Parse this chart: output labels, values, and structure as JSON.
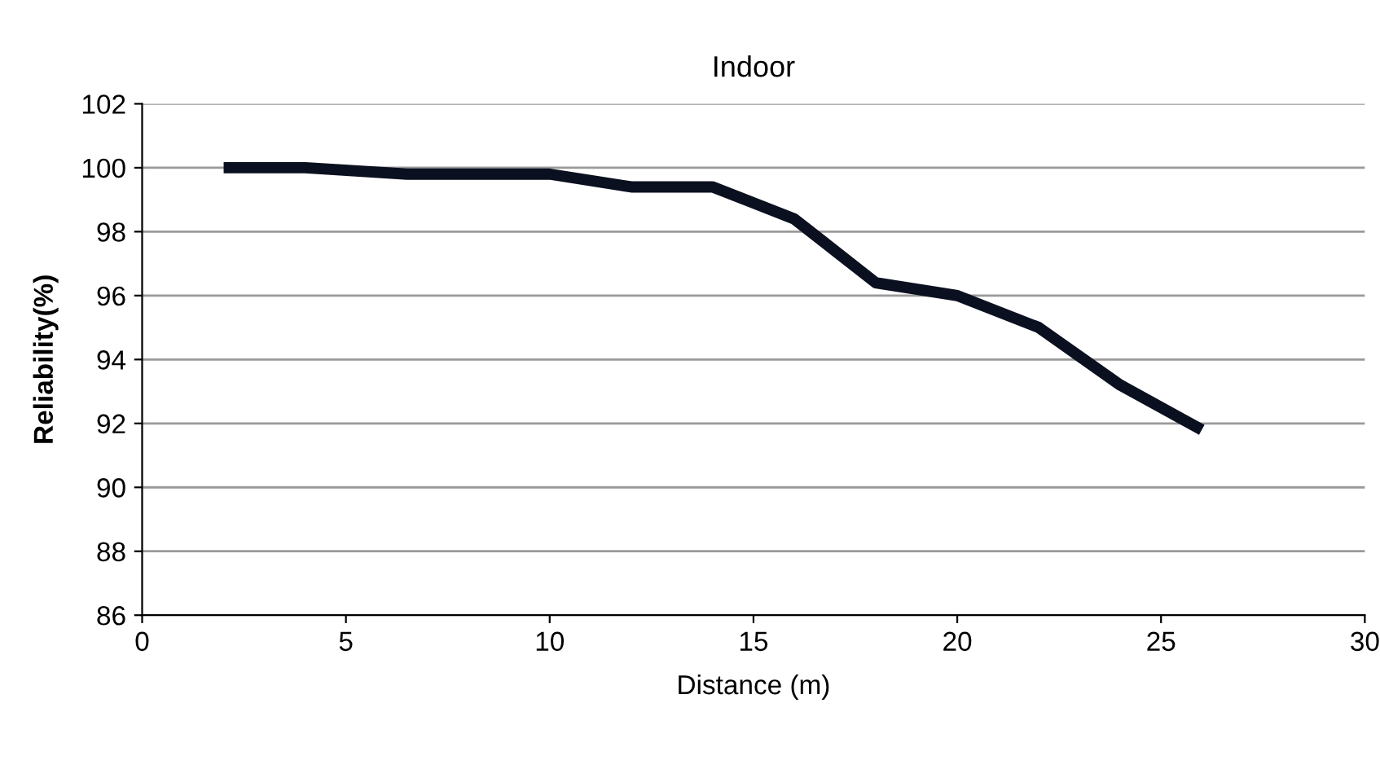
{
  "chart_data": {
    "type": "line",
    "title": "Indoor",
    "xlabel": "Distance (m)",
    "ylabel": "Reliability(%)",
    "series": [
      {
        "color": "#0b1020",
        "x": [
          2,
          4,
          6.5,
          10,
          12,
          14,
          16,
          18,
          20,
          22,
          24,
          26
        ],
        "values": [
          100,
          100,
          99.8,
          99.8,
          99.4,
          99.4,
          98.4,
          96.4,
          96,
          95,
          93.2,
          91.8
        ]
      }
    ],
    "xlim": [
      0,
      30
    ],
    "xticks": [
      0,
      5,
      10,
      15,
      20,
      25,
      30
    ],
    "ylim": [
      86,
      102
    ],
    "yticks": [
      86,
      88,
      90,
      92,
      94,
      96,
      98,
      100,
      102
    ],
    "grid": "y",
    "legend": false,
    "marker": "none",
    "line_style": "solid"
  }
}
